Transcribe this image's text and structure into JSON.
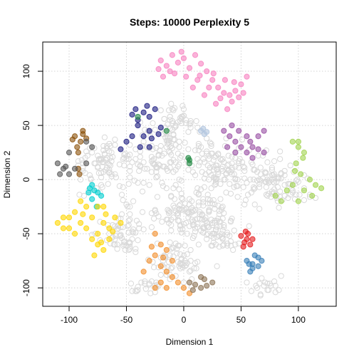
{
  "chart_data": {
    "type": "scatter",
    "title": "Steps: 10000 Perplexity 5",
    "xlabel": "Dimension 1",
    "ylabel": "Dimension 2",
    "xlim": [
      -123,
      133
    ],
    "ylim": [
      -117,
      127
    ],
    "x_ticks": [
      -100,
      -50,
      0,
      50,
      100
    ],
    "y_ticks": [
      -100,
      -50,
      0,
      50,
      100
    ],
    "x_tick_labels": [
      "-100",
      "-50",
      "0",
      "50",
      "100"
    ],
    "y_tick_labels": [
      "-100",
      "-50",
      "0",
      "50",
      "100"
    ],
    "grid": true,
    "background_seed": 7,
    "series": [
      {
        "name": "background",
        "color": "#d9d9d9",
        "open": true,
        "points": []
      },
      {
        "name": "pink",
        "color": "#f781bf",
        "points": [
          [
            -20,
            110
          ],
          [
            -15,
            105
          ],
          [
            -10,
            115
          ],
          [
            -5,
            108
          ],
          [
            0,
            112
          ],
          [
            5,
            103
          ],
          [
            10,
            115
          ],
          [
            15,
            107
          ],
          [
            20,
            100
          ],
          [
            25,
            92
          ],
          [
            30,
            85
          ],
          [
            35,
            80
          ],
          [
            40,
            78
          ],
          [
            45,
            82
          ],
          [
            50,
            88
          ],
          [
            55,
            95
          ],
          [
            -18,
            95
          ],
          [
            -8,
            98
          ],
          [
            2,
            95
          ],
          [
            12,
            92
          ],
          [
            22,
            85
          ],
          [
            32,
            75
          ],
          [
            42,
            72
          ],
          [
            48,
            76
          ],
          [
            -12,
            100
          ],
          [
            8,
            85
          ],
          [
            18,
            78
          ],
          [
            28,
            70
          ],
          [
            38,
            65
          ],
          [
            52,
            80
          ],
          [
            -22,
            102
          ],
          [
            -2,
            118
          ],
          [
            14,
            96
          ],
          [
            26,
            98
          ],
          [
            44,
            90
          ],
          [
            36,
            92
          ]
        ]
      },
      {
        "name": "navy",
        "color": "#1a1a80",
        "points": [
          [
            -45,
            60
          ],
          [
            -40,
            55
          ],
          [
            -35,
            62
          ],
          [
            -30,
            58
          ],
          [
            -25,
            65
          ],
          [
            -30,
            45
          ],
          [
            -35,
            40
          ],
          [
            -40,
            50
          ],
          [
            -28,
            38
          ],
          [
            -22,
            42
          ],
          [
            -45,
            40
          ],
          [
            -50,
            35
          ],
          [
            -38,
            30
          ],
          [
            -30,
            30
          ],
          [
            -55,
            28
          ],
          [
            -32,
            68
          ],
          [
            -42,
            65
          ],
          [
            -20,
            48
          ]
        ]
      },
      {
        "name": "green",
        "color": "#238b45",
        "points": [
          [
            -40,
            58
          ],
          [
            -15,
            45
          ],
          [
            5,
            15
          ],
          [
            4,
            20
          ],
          [
            5,
            18
          ]
        ]
      },
      {
        "name": "lightblue",
        "color": "#b0c4de",
        "points": [
          [
            15,
            45
          ],
          [
            17,
            47
          ],
          [
            20,
            44
          ],
          [
            18,
            42
          ]
        ]
      },
      {
        "name": "purple",
        "color": "#984ea3",
        "points": [
          [
            35,
            45
          ],
          [
            40,
            40
          ],
          [
            45,
            35
          ],
          [
            50,
            30
          ],
          [
            55,
            25
          ],
          [
            60,
            30
          ],
          [
            65,
            40
          ],
          [
            70,
            45
          ],
          [
            60,
            20
          ],
          [
            45,
            25
          ],
          [
            38,
            30
          ],
          [
            55,
            40
          ],
          [
            65,
            28
          ],
          [
            70,
            25
          ],
          [
            48,
            45
          ],
          [
            58,
            35
          ],
          [
            42,
            50
          ]
        ]
      },
      {
        "name": "limegreen",
        "color": "#a1d34f",
        "points": [
          [
            95,
            35
          ],
          [
            100,
            30
          ],
          [
            105,
            25
          ],
          [
            98,
            15
          ],
          [
            102,
            5
          ],
          [
            110,
            0
          ],
          [
            115,
            -5
          ],
          [
            120,
            -8
          ],
          [
            95,
            -5
          ],
          [
            90,
            -10
          ],
          [
            85,
            -20
          ],
          [
            80,
            -15
          ],
          [
            100,
            -20
          ],
          [
            105,
            -10
          ],
          [
            112,
            -15
          ],
          [
            100,
            35
          ],
          [
            104,
            20
          ],
          [
            97,
            8
          ]
        ]
      },
      {
        "name": "brown",
        "color": "#8c510a",
        "points": [
          [
            -95,
            40
          ],
          [
            -90,
            35
          ],
          [
            -93,
            30
          ],
          [
            -88,
            45
          ],
          [
            -85,
            38
          ],
          [
            -92,
            25
          ],
          [
            -97,
            37
          ],
          [
            -92,
            10
          ],
          [
            -88,
            42
          ],
          [
            -91,
            5
          ]
        ]
      },
      {
        "name": "darkgray",
        "color": "#555555",
        "points": [
          [
            -110,
            15
          ],
          [
            -105,
            10
          ],
          [
            -100,
            5
          ],
          [
            -95,
            10
          ],
          [
            -108,
            5
          ],
          [
            -85,
            35
          ],
          [
            -80,
            30
          ],
          [
            -100,
            25
          ],
          [
            -85,
            15
          ],
          [
            -103,
            12
          ]
        ]
      },
      {
        "name": "cyan",
        "color": "#00ced1",
        "points": [
          [
            -80,
            -5
          ],
          [
            -78,
            -10
          ],
          [
            -75,
            -12
          ],
          [
            -82,
            -8
          ],
          [
            -72,
            -15
          ],
          [
            -80,
            -18
          ],
          [
            -76,
            -25
          ],
          [
            -83,
            -12
          ]
        ]
      },
      {
        "name": "gold",
        "color": "#ffd700",
        "points": [
          [
            -110,
            -40
          ],
          [
            -105,
            -35
          ],
          [
            -100,
            -45
          ],
          [
            -95,
            -30
          ],
          [
            -90,
            -40
          ],
          [
            -85,
            -45
          ],
          [
            -80,
            -35
          ],
          [
            -75,
            -50
          ],
          [
            -70,
            -40
          ],
          [
            -65,
            -45
          ],
          [
            -60,
            -35
          ],
          [
            -55,
            -40
          ],
          [
            -80,
            -55
          ],
          [
            -75,
            -60
          ],
          [
            -70,
            -65
          ],
          [
            -65,
            -55
          ],
          [
            -85,
            -25
          ],
          [
            -75,
            -25
          ],
          [
            -95,
            -50
          ],
          [
            -100,
            -35
          ],
          [
            -105,
            -45
          ],
          [
            -90,
            -20
          ],
          [
            -70,
            -25
          ],
          [
            -78,
            -70
          ],
          [
            -72,
            -58
          ],
          [
            -62,
            -48
          ],
          [
            -88,
            -32
          ],
          [
            -68,
            -32
          ]
        ]
      },
      {
        "name": "orange",
        "color": "#f28e2b",
        "points": [
          [
            -25,
            -50
          ],
          [
            -20,
            -60
          ],
          [
            -15,
            -65
          ],
          [
            -25,
            -70
          ],
          [
            -30,
            -75
          ],
          [
            -20,
            -80
          ],
          [
            -15,
            -85
          ],
          [
            -10,
            -90
          ],
          [
            -5,
            -95
          ],
          [
            -20,
            -95
          ],
          [
            -15,
            -100
          ],
          [
            0,
            -100
          ],
          [
            5,
            -105
          ],
          [
            -25,
            -100
          ],
          [
            -35,
            -85
          ],
          [
            -10,
            -75
          ],
          [
            -28,
            -62
          ],
          [
            -18,
            -72
          ]
        ]
      },
      {
        "name": "tan",
        "color": "#8c7355",
        "points": [
          [
            5,
            -95
          ],
          [
            10,
            -97
          ],
          [
            15,
            -100
          ],
          [
            20,
            -98
          ],
          [
            25,
            -95
          ],
          [
            15,
            -90
          ],
          [
            8,
            -102
          ],
          [
            18,
            -92
          ]
        ]
      },
      {
        "name": "red",
        "color": "#e41a1c",
        "points": [
          [
            50,
            -52
          ],
          [
            55,
            -55
          ],
          [
            58,
            -60
          ],
          [
            53,
            -58
          ],
          [
            56,
            -50
          ],
          [
            52,
            -62
          ],
          [
            60,
            -55
          ],
          [
            54,
            -48
          ]
        ]
      },
      {
        "name": "steelblue",
        "color": "#377eb8",
        "points": [
          [
            55,
            -75
          ],
          [
            60,
            -78
          ],
          [
            65,
            -80
          ],
          [
            58,
            -85
          ],
          [
            62,
            -70
          ],
          [
            68,
            -75
          ],
          [
            60,
            -82
          ],
          [
            65,
            -72
          ],
          [
            57,
            -78
          ]
        ]
      }
    ]
  }
}
